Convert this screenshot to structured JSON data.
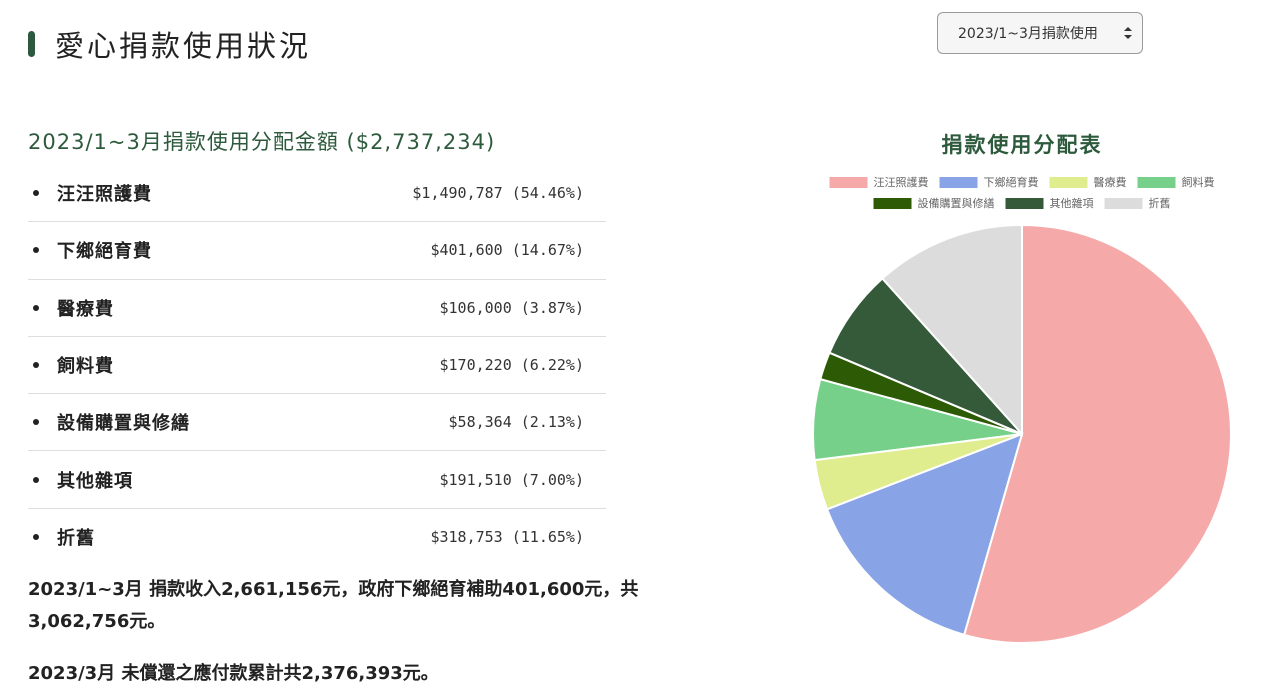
{
  "page": {
    "title": "愛心捐款使用狀況"
  },
  "period_select": {
    "selected": "2023/1~3月捐款使用"
  },
  "allocation": {
    "heading": "2023/1~3月捐款使用分配金額 ($2,737,234)",
    "items": [
      {
        "label": "汪汪照護費",
        "value": "$1,490,787 (54.46%)"
      },
      {
        "label": "下鄉絕育費",
        "value": "$401,600 (14.67%)"
      },
      {
        "label": "醫療費",
        "value": "$106,000 (3.87%)"
      },
      {
        "label": "飼料費",
        "value": "$170,220 (6.22%)"
      },
      {
        "label": "設備購置與修繕",
        "value": "$58,364 (2.13%)"
      },
      {
        "label": "其他雜項",
        "value": "$191,510 (7.00%)"
      },
      {
        "label": "折舊",
        "value": "$318,753 (11.65%)"
      }
    ]
  },
  "notes": {
    "income": "2023/1~3月 捐款收入2,661,156元，政府下鄉絕育補助401,600元，共3,062,756元。",
    "payable": "2023/3月 未償還之應付款累計共2,376,393元。"
  },
  "colors": {
    "accent": "#2d5a3c"
  },
  "icons": {
    "select_arrows": "up-down-arrows-icon",
    "title_marker": "title-bar-marker"
  },
  "chart_data": {
    "type": "pie",
    "title": "捐款使用分配表",
    "legend_position": "top",
    "categories": [
      "汪汪照護費",
      "下鄉絕育費",
      "醫療費",
      "飼料費",
      "設備購置與修繕",
      "其他雜項",
      "折舊"
    ],
    "values": [
      1490787,
      401600,
      106000,
      170220,
      58364,
      191510,
      318753
    ],
    "colors": [
      "#f5a9a9",
      "#88a3e6",
      "#dfed8f",
      "#77d08a",
      "#2d5b05",
      "#355a3a",
      "#dcdcdc"
    ]
  }
}
